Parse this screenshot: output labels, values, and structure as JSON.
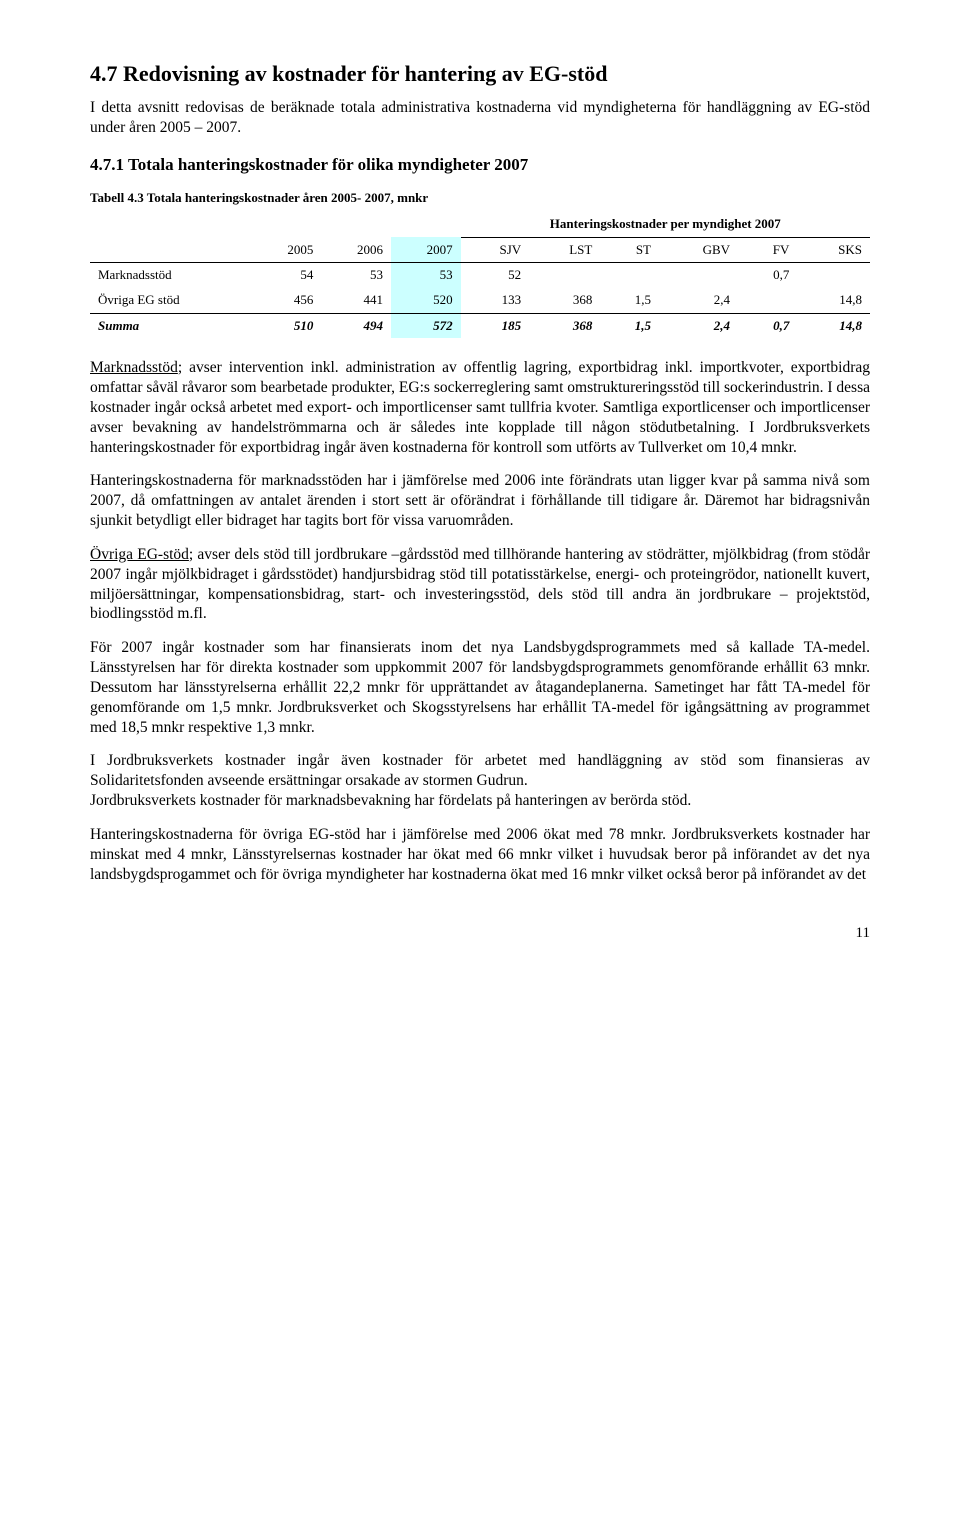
{
  "heading": "4.7 Redovisning av kostnader för hantering av EG-stöd",
  "intro": "I detta avsnitt redovisas de beräknade totala administrativa kostnaderna vid myndigheterna för handläggning av EG-stöd under åren 2005 – 2007.",
  "subheading": "4.7.1 Totala hanteringskostnader för olika myndigheter 2007",
  "table": {
    "caption": "Tabell 4.3 Totala hanteringskostnader åren 2005- 2007, mnkr",
    "supHeaderRight": "Hanteringskostnader per myndighet 2007",
    "cols": [
      "",
      "2005",
      "2006",
      "2007",
      "SJV",
      "LST",
      "ST",
      "GBV",
      "FV",
      "SKS"
    ],
    "rows": [
      {
        "label": "Marknadsstöd",
        "c": [
          "54",
          "53",
          "53",
          "52",
          "",
          "",
          "",
          "0,7",
          ""
        ]
      },
      {
        "label": "Övriga EG stöd",
        "c": [
          "456",
          "441",
          "520",
          "133",
          "368",
          "1,5",
          "2,4",
          "",
          "14,8"
        ]
      }
    ],
    "sum": {
      "label": "Summa",
      "c": [
        "510",
        "494",
        "572",
        "185",
        "368",
        "1,5",
        "2,4",
        "0,7",
        "14,8"
      ]
    },
    "highlightCol": 3,
    "hlColor": "#ccffff"
  },
  "para1": {
    "lead": "Marknadsstöd",
    "text": "; avser intervention inkl. administration av offentlig lagring, exportbidrag inkl. importkvoter, exportbidrag omfattar såväl råvaror som bearbetade produkter, EG:s sockerreglering samt omstruktureringsstöd till sockerindustrin. I dessa kostnader ingår också arbetet med export- och importlicenser samt tullfria kvoter. Samtliga exportlicenser och importlicenser avser bevakning av handelströmmarna och är således inte kopplade till någon stödutbetalning. I Jordbruksverkets hanteringskostnader för exportbidrag ingår även kostnaderna för kontroll som utförts av Tullverket om 10,4 mnkr."
  },
  "para2": "Hanteringskostnaderna för marknadsstöden har i jämförelse med 2006 inte förändrats utan ligger kvar på samma nivå som 2007, då omfattningen av antalet ärenden i stort sett är oförändrat i förhållande till tidigare år. Däremot har bidragsnivån sjunkit betydligt eller bidraget har tagits bort för vissa varuområden.",
  "para3": {
    "lead": "Övriga EG-stöd",
    "text": "; avser dels stöd till jordbrukare –gårdsstöd med tillhörande hantering av stödrätter, mjölkbidrag (from stödår 2007 ingår mjölkbidraget i gårdsstödet) handjursbidrag stöd till potatisstärkelse, energi- och proteingrödor, nationellt kuvert,  miljöersättningar, kompensationsbidrag, start- och investeringsstöd, dels stöd till andra än jordbrukare – projektstöd, biodlingsstöd m.fl."
  },
  "para4": "För 2007 ingår kostnader som har finansierats inom det nya Landsbygdsprogrammets med så kallade TA-medel. Länsstyrelsen har för direkta kostnader som uppkommit 2007 för landsbygdsprogrammets genomförande erhållit 63 mnkr. Dessutom har länsstyrelserna erhållit 22,2 mnkr för upprättandet av åtagandeplanerna. Sametinget har fått TA-medel för genomförande om 1,5 mnkr. Jordbruksverket och Skogsstyrelsens har erhållit TA-medel för igångsättning av programmet med 18,5 mnkr respektive 1,3 mnkr.",
  "para5": "I Jordbruksverkets kostnader ingår även kostnader för arbetet med handläggning av stöd som finansieras av Solidaritetsfonden avseende ersättningar orsakade av stormen Gudrun.\nJordbruksverkets kostnader för marknadsbevakning har fördelats på hanteringen av berörda stöd.",
  "para6": "Hanteringskostnaderna för övriga EG-stöd har i jämförelse med 2006 ökat med 78 mnkr. Jordbruksverkets kostnader har minskat med 4 mnkr, Länsstyrelsernas kostnader har ökat med 66 mnkr vilket i huvudsak beror på införandet av det nya landsbygdsprogammet och för övriga myndigheter har kostnaderna ökat med 16 mnkr vilket också beror på införandet av det",
  "pageNumber": "11"
}
